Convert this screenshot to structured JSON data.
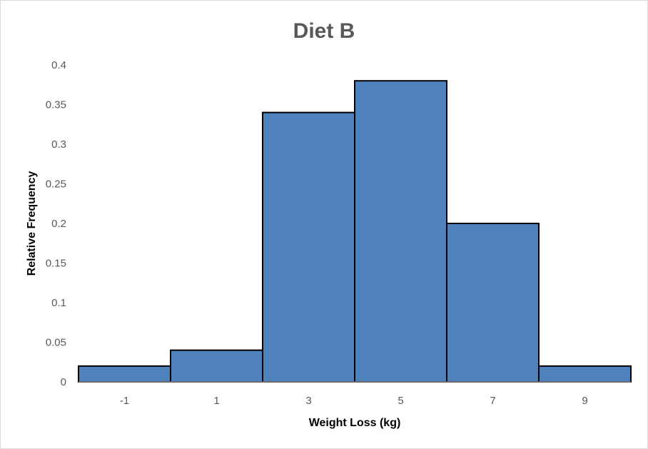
{
  "chart_data": {
    "type": "bar",
    "title": "Diet B",
    "xlabel": "Weight Loss (kg)",
    "ylabel": "Relative Frequency",
    "categories": [
      "-1",
      "1",
      "3",
      "5",
      "7",
      "9"
    ],
    "values": [
      0.02,
      0.04,
      0.34,
      0.38,
      0.2,
      0.02
    ],
    "y_ticks": [
      "0",
      "0.05",
      "0.1",
      "0.15",
      "0.2",
      "0.25",
      "0.3",
      "0.35",
      "0.4"
    ],
    "ylim": [
      0,
      0.4
    ],
    "grid": false,
    "legend": "none",
    "bar_color": "#4F81BD",
    "bar_edge_color": "#000000"
  }
}
